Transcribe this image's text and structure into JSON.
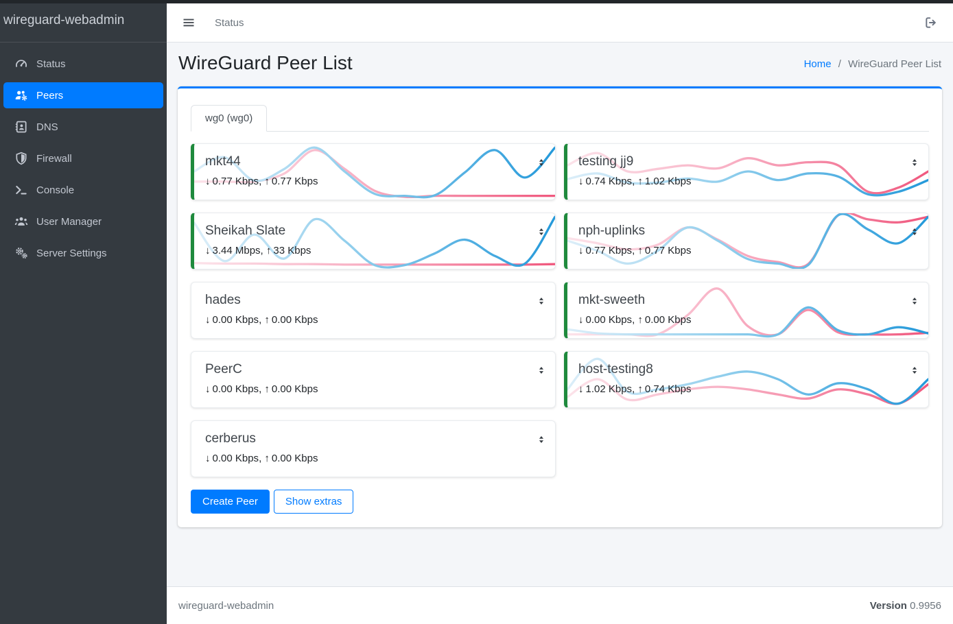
{
  "app": {
    "brand": "wireguard-webadmin",
    "nav_link": "Status"
  },
  "sidebar": {
    "items": [
      {
        "id": "status",
        "label": "Status",
        "icon": "gauge",
        "active": false
      },
      {
        "id": "peers",
        "label": "Peers",
        "icon": "users-gear",
        "active": true
      },
      {
        "id": "dns",
        "label": "DNS",
        "icon": "address-book",
        "active": false
      },
      {
        "id": "firewall",
        "label": "Firewall",
        "icon": "shield",
        "active": false
      },
      {
        "id": "console",
        "label": "Console",
        "icon": "terminal",
        "active": false
      },
      {
        "id": "user-manager",
        "label": "User Manager",
        "icon": "users",
        "active": false
      },
      {
        "id": "server-settings",
        "label": "Server Settings",
        "icon": "gears",
        "active": false
      }
    ]
  },
  "page": {
    "title": "WireGuard Peer List",
    "breadcrumb": {
      "home": "Home",
      "separator": "/",
      "current": "WireGuard Peer List"
    }
  },
  "tabs": [
    {
      "label": "wg0 (wg0)",
      "active": true
    }
  ],
  "traffic_format": {
    "down_arrow": "↓",
    "up_arrow": "↑",
    "separator": ", "
  },
  "peers": [
    {
      "name": "mkt44",
      "down": "0.77 Kbps",
      "up": "0.77 Kbps",
      "online": true,
      "spark": {
        "rx": [
          0.5,
          0.78,
          0.32,
          0.55,
          0.97,
          0.5,
          0.06,
          0.02,
          0.03,
          0.48,
          0.92,
          0.38,
          0.97
        ],
        "tx": [
          0.3,
          0.3,
          0.3,
          0.46,
          0.92,
          0.55,
          0.12,
          0.0,
          0.02,
          0.02,
          0.02,
          0.02,
          0.02
        ]
      }
    },
    {
      "name": "testing jj9",
      "down": "0.74 Kbps",
      "up": "1.02 Kbps",
      "online": true,
      "spark": {
        "rx": [
          0.35,
          0.46,
          0.28,
          0.28,
          0.36,
          0.3,
          0.5,
          0.33,
          0.46,
          0.4,
          0.05,
          0.1,
          0.33
        ],
        "tx": [
          0.62,
          0.86,
          0.5,
          0.55,
          0.62,
          0.56,
          0.76,
          0.62,
          0.68,
          0.62,
          0.1,
          0.18,
          0.5
        ]
      }
    },
    {
      "name": "Sheikah Slate",
      "down": "3.44 Mbps",
      "up": "33 Kbps",
      "online": true,
      "spark": {
        "rx": [
          0.85,
          0.1,
          0.62,
          0.15,
          0.92,
          0.5,
          0.02,
          0.02,
          0.25,
          0.52,
          0.2,
          0.05,
          0.97
        ],
        "tx": [
          0.06,
          0.05,
          0.05,
          0.04,
          0.04,
          0.03,
          0.03,
          0.03,
          0.03,
          0.03,
          0.03,
          0.03,
          0.04
        ]
      }
    },
    {
      "name": "nph-uplinks",
      "down": "0.77 Kbps",
      "up": "0.77 Kbps",
      "online": true,
      "spark": {
        "rx": [
          0.5,
          0.3,
          0.05,
          0.3,
          0.76,
          0.5,
          0.14,
          0.05,
          0.02,
          1.0,
          0.72,
          0.45,
          0.97
        ],
        "tx": [
          0.55,
          0.45,
          0.33,
          0.42,
          0.76,
          0.52,
          0.2,
          0.08,
          0.04,
          1.0,
          0.92,
          0.86,
          0.97
        ]
      }
    },
    {
      "name": "hades",
      "down": "0.00 Kbps",
      "up": "0.00 Kbps",
      "online": false,
      "spark": {
        "rx": [
          0.02,
          0.02,
          0.02,
          0.02,
          0.02,
          0.02,
          0.02,
          0.02,
          0.02,
          0.02,
          0.02,
          0.02,
          0.02
        ],
        "tx": [
          0.01,
          0.01,
          0.01,
          0.01,
          0.01,
          0.01,
          0.01,
          0.01,
          0.01,
          0.01,
          0.01,
          0.01,
          0.01
        ]
      }
    },
    {
      "name": "mkt-sweeth",
      "down": "0.00 Kbps",
      "up": "0.00 Kbps",
      "online": true,
      "spark": {
        "rx": [
          0.12,
          0.04,
          0.02,
          0.02,
          0.02,
          0.02,
          0.02,
          0.02,
          0.55,
          0.1,
          0.02,
          0.16,
          0.04
        ],
        "tx": [
          0.02,
          0.02,
          0.02,
          0.02,
          0.4,
          0.92,
          0.18,
          0.02,
          0.5,
          0.06,
          0.02,
          0.02,
          0.05
        ]
      }
    },
    {
      "name": "PeerC",
      "down": "0.00 Kbps",
      "up": "0.00 Kbps",
      "online": false,
      "spark": {
        "rx": [
          0.02,
          0.02,
          0.02,
          0.02,
          0.02,
          0.02,
          0.02,
          0.02,
          0.02,
          0.02,
          0.02,
          0.02,
          0.02
        ],
        "tx": [
          0.01,
          0.01,
          0.01,
          0.01,
          0.01,
          0.01,
          0.01,
          0.01,
          0.01,
          0.01,
          0.01,
          0.01,
          0.01
        ]
      }
    },
    {
      "name": "host-testing8",
      "down": "1.02 Kbps",
      "up": "0.74 Kbps",
      "online": true,
      "spark": {
        "rx": [
          0.3,
          0.9,
          0.25,
          0.3,
          0.4,
          0.55,
          0.65,
          0.5,
          0.2,
          0.42,
          0.3,
          0.02,
          0.5
        ],
        "tx": [
          0.15,
          0.5,
          0.1,
          0.2,
          0.3,
          0.35,
          0.3,
          0.2,
          0.12,
          0.3,
          0.2,
          0.02,
          0.4
        ]
      }
    },
    {
      "name": "cerberus",
      "down": "0.00 Kbps",
      "up": "0.00 Kbps",
      "online": false,
      "spark": {
        "rx": [
          0.02,
          0.02,
          0.02,
          0.02,
          0.02,
          0.02,
          0.02,
          0.02,
          0.02,
          0.02,
          0.02,
          0.02,
          0.02
        ],
        "tx": [
          0.01,
          0.01,
          0.01,
          0.01,
          0.01,
          0.01,
          0.01,
          0.01,
          0.01,
          0.01,
          0.01,
          0.01,
          0.01
        ]
      }
    }
  ],
  "actions": {
    "create_peer": "Create Peer",
    "show_extras": "Show extras"
  },
  "footer": {
    "brand": "wireguard-webadmin",
    "version_label": "Version",
    "version_value": "0.9956"
  },
  "colors": {
    "accent": "#007bff",
    "online_green": "#1f8a3d",
    "sidebar_bg": "#343a40",
    "spark_rx": "#2499da",
    "spark_rx_light": "#dceef9",
    "spark_tx": "#f0587e",
    "spark_tx_light": "#fce3ea"
  }
}
